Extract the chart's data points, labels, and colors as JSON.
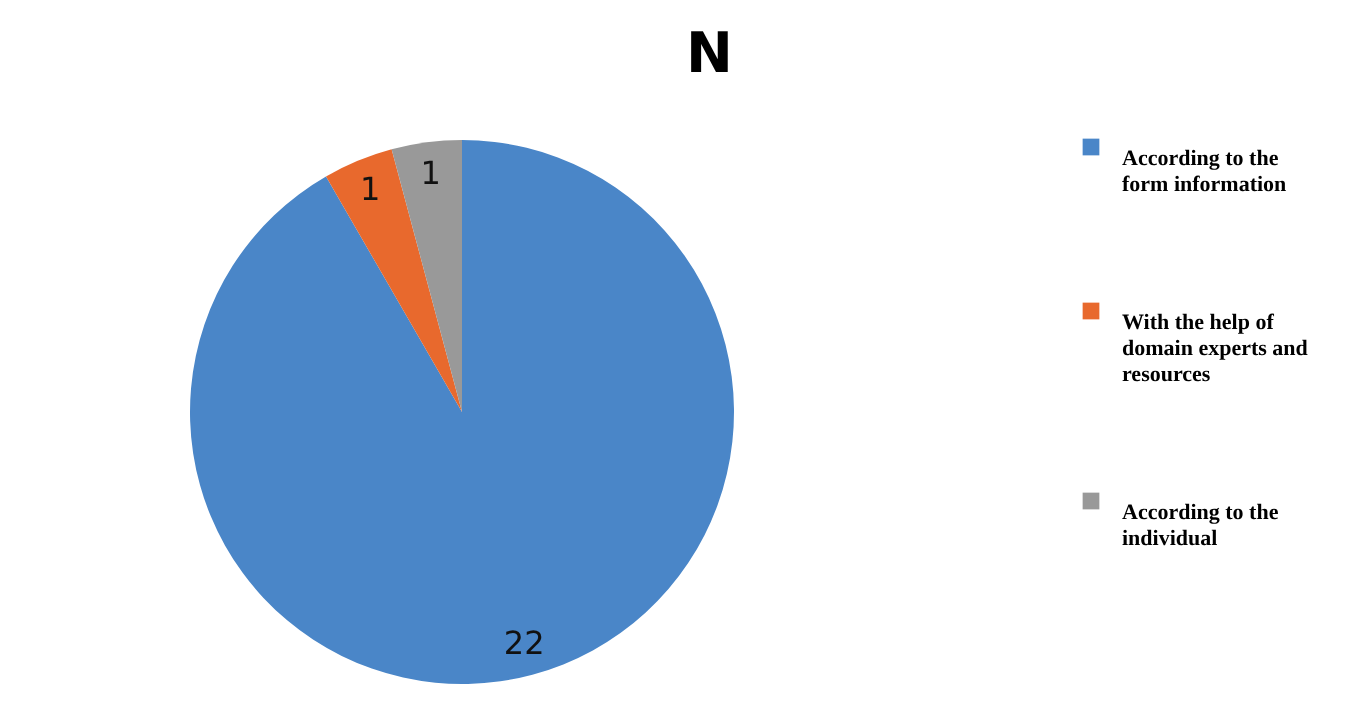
{
  "chart_data": {
    "type": "pie",
    "title": "N",
    "categories": [
      "According to the form information",
      "With the help of domain experts and resources",
      "According to the individual"
    ],
    "values": [
      22,
      1,
      1
    ],
    "colors": [
      "#4a86c8",
      "#e8692d",
      "#999999"
    ],
    "data_labels": true,
    "legend": "right"
  }
}
